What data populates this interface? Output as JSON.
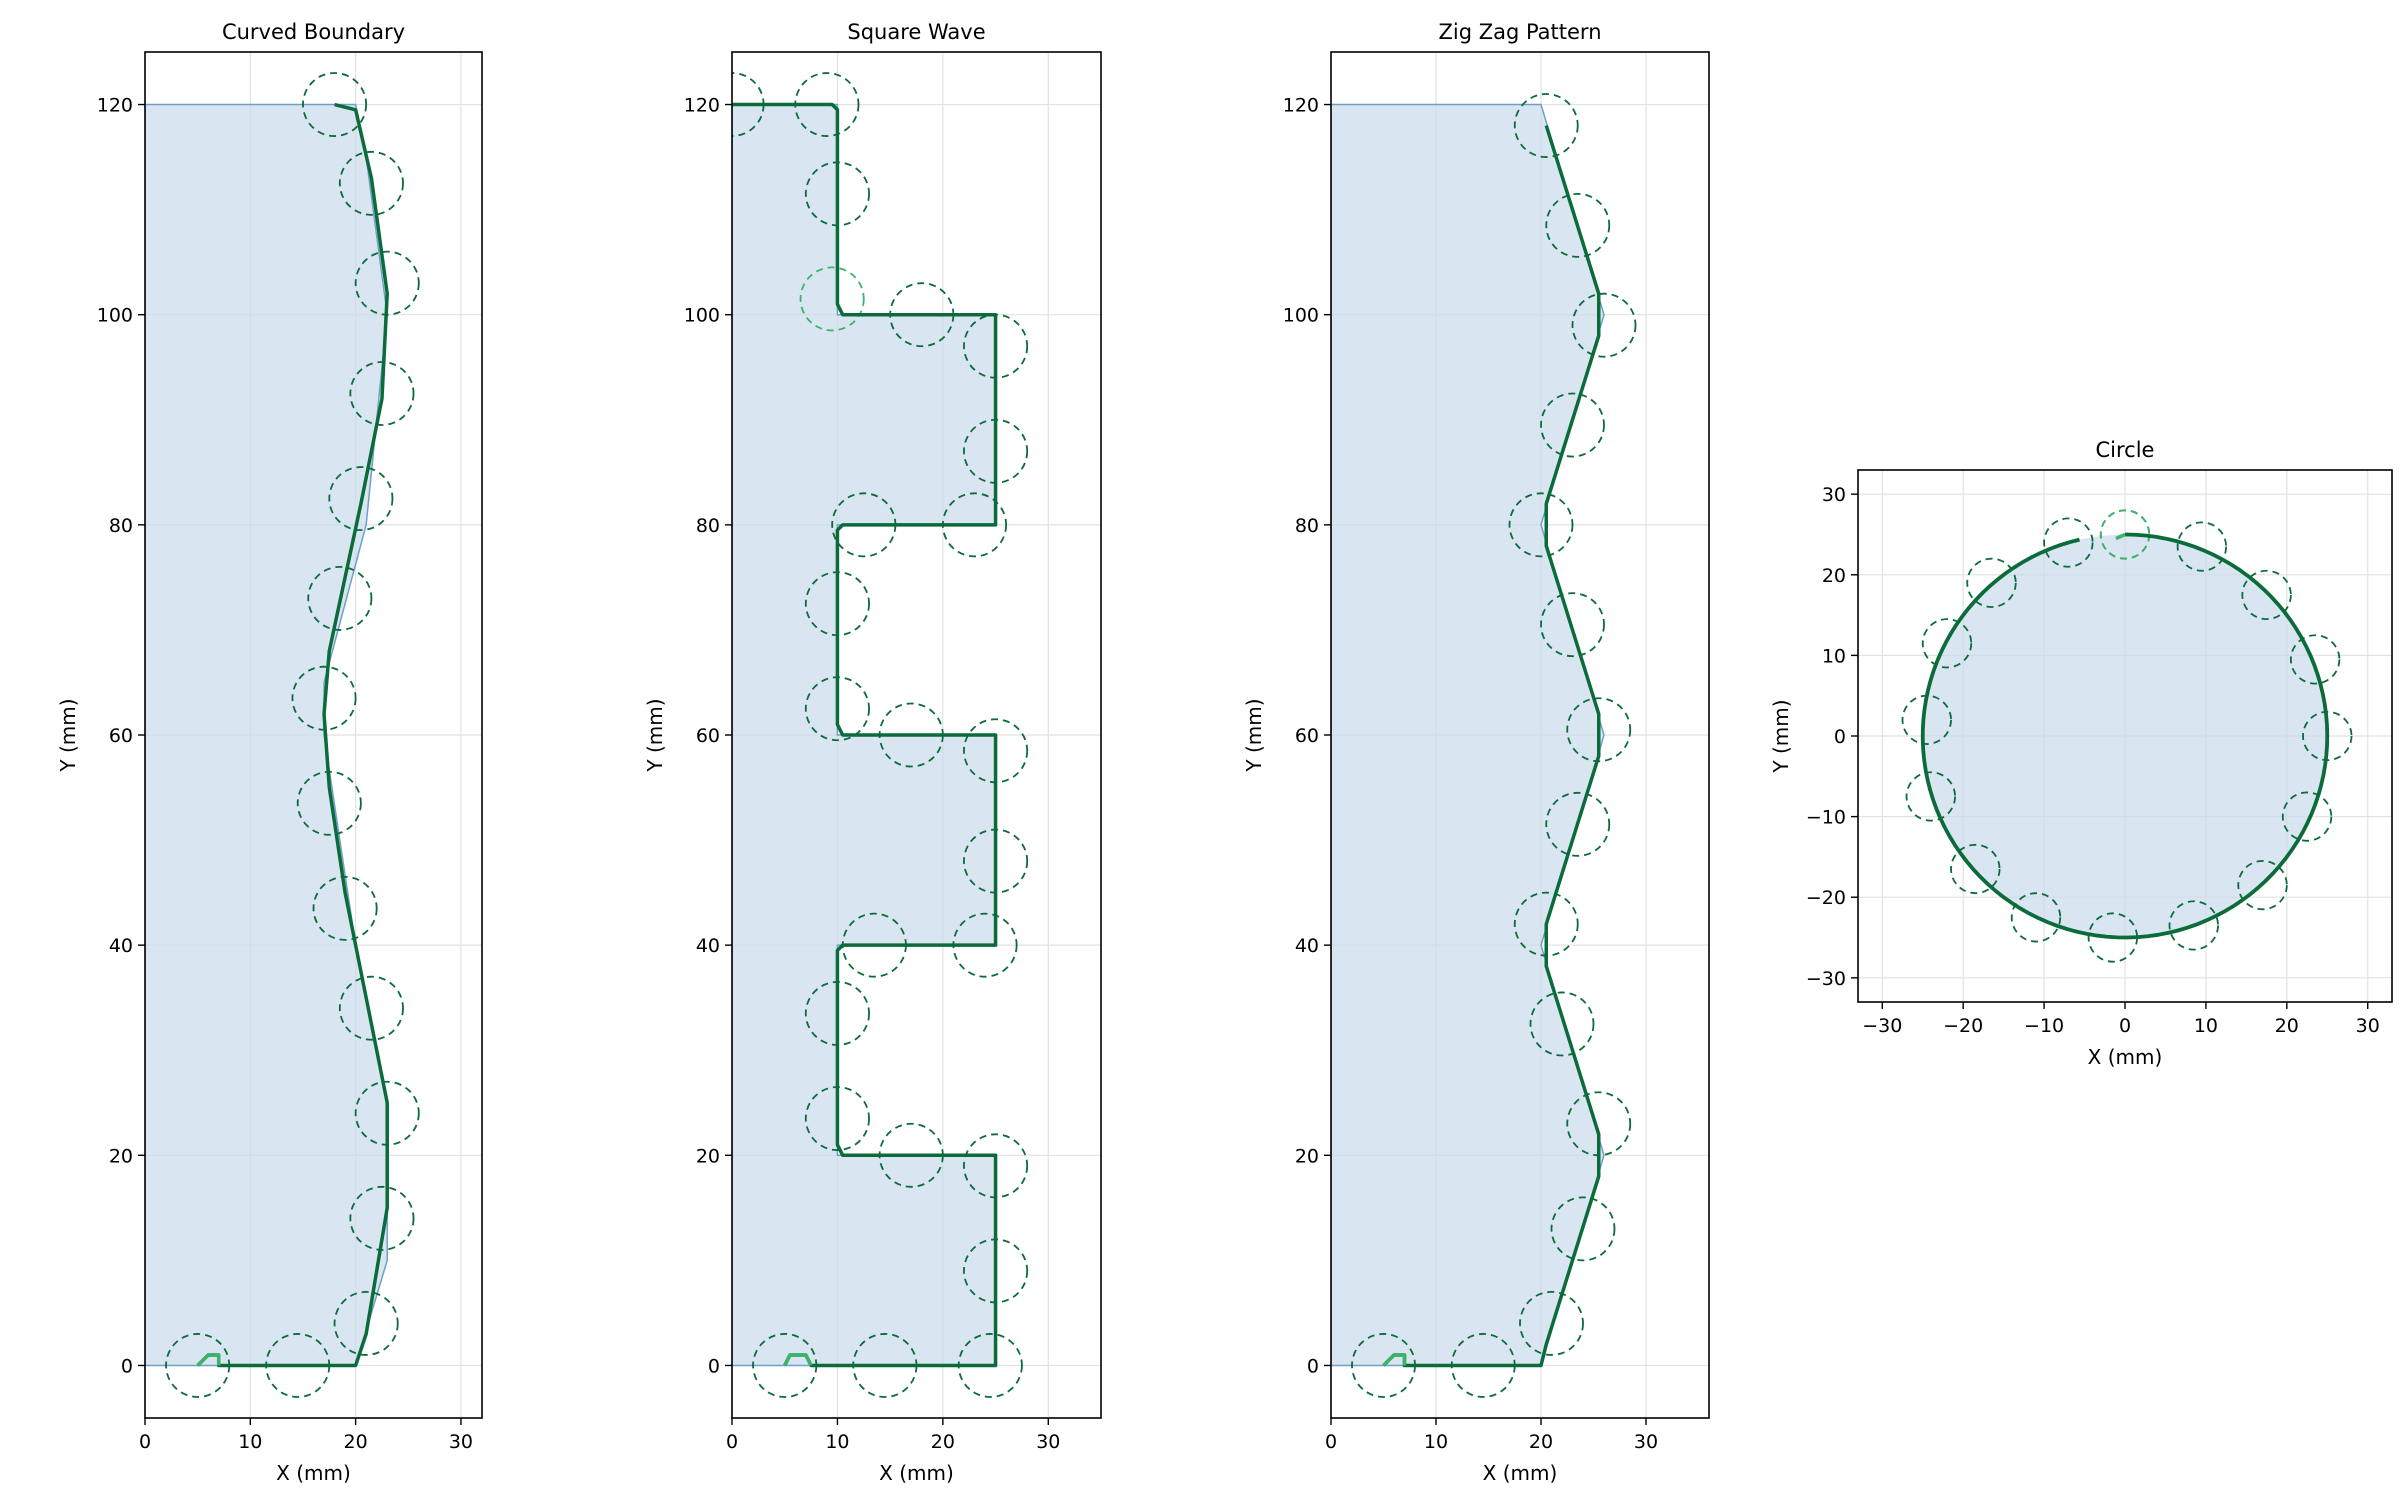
{
  "figure": {
    "background": "#ffffff"
  },
  "colors": {
    "fill": "#c9dceb",
    "fill_edge": "#6fa0c8",
    "path": "#0b6b3a",
    "path_light": "#3db36a",
    "circle": "#0b6b3a",
    "grid": "#e2e2e2",
    "axis": "#000000"
  },
  "chart_data": [
    {
      "type": "line",
      "title": "Curved Boundary",
      "xlabel": "X (mm)",
      "ylabel": "Y (mm)",
      "xlim": [
        0,
        32
      ],
      "ylim": [
        -5,
        125
      ],
      "xticks": [
        0,
        10,
        20,
        30
      ],
      "yticks": [
        0,
        20,
        40,
        60,
        80,
        100,
        120
      ],
      "grid": true,
      "tool_radius": 3,
      "region": [
        [
          0,
          0
        ],
        [
          20,
          0
        ],
        [
          23,
          10
        ],
        [
          23,
          25
        ],
        [
          20,
          40
        ],
        [
          17,
          60
        ],
        [
          17,
          65
        ],
        [
          21,
          80
        ],
        [
          23,
          100
        ],
        [
          21,
          115
        ],
        [
          20,
          120
        ],
        [
          0,
          120
        ]
      ],
      "toolpath": [
        [
          5,
          0
        ],
        [
          6,
          1
        ],
        [
          7,
          1
        ],
        [
          7,
          0
        ],
        [
          20,
          0
        ],
        [
          21,
          3
        ],
        [
          23,
          15
        ],
        [
          23,
          25
        ],
        [
          21,
          35
        ],
        [
          19,
          45
        ],
        [
          17.5,
          55
        ],
        [
          17,
          62
        ],
        [
          17.5,
          68
        ],
        [
          19,
          75
        ],
        [
          20.5,
          82
        ],
        [
          22.5,
          92
        ],
        [
          23,
          102
        ],
        [
          21.5,
          113
        ],
        [
          20,
          119.5
        ],
        [
          18,
          120
        ]
      ],
      "tool_positions": [
        [
          5,
          0
        ],
        [
          14.5,
          0
        ],
        [
          21,
          4
        ],
        [
          22.5,
          14
        ],
        [
          23,
          24
        ],
        [
          21.5,
          34
        ],
        [
          19,
          43.5
        ],
        [
          17.5,
          53.5
        ],
        [
          17,
          63.5
        ],
        [
          18.5,
          73
        ],
        [
          20.5,
          82.5
        ],
        [
          22.5,
          92.5
        ],
        [
          23,
          103
        ],
        [
          21.5,
          112.5
        ],
        [
          18,
          120
        ]
      ],
      "highlight_positions": []
    },
    {
      "type": "line",
      "title": "Square Wave",
      "xlabel": "X (mm)",
      "ylabel": "Y (mm)",
      "xlim": [
        0,
        35
      ],
      "ylim": [
        -5,
        125
      ],
      "xticks": [
        0,
        10,
        20,
        30
      ],
      "yticks": [
        0,
        20,
        40,
        60,
        80,
        100,
        120
      ],
      "grid": true,
      "tool_radius": 3,
      "region": [
        [
          0,
          0
        ],
        [
          25,
          0
        ],
        [
          25,
          20
        ],
        [
          10,
          20
        ],
        [
          10,
          40
        ],
        [
          25,
          40
        ],
        [
          25,
          60
        ],
        [
          10,
          60
        ],
        [
          10,
          80
        ],
        [
          25,
          80
        ],
        [
          25,
          100
        ],
        [
          10,
          100
        ],
        [
          10,
          120
        ],
        [
          0,
          120
        ]
      ],
      "toolpath": [
        [
          5,
          0
        ],
        [
          5.5,
          1
        ],
        [
          7,
          1
        ],
        [
          7.5,
          0
        ],
        [
          25,
          0
        ],
        [
          25,
          20
        ],
        [
          10.5,
          20
        ],
        [
          10,
          21
        ],
        [
          10,
          39.5
        ],
        [
          10.5,
          40
        ],
        [
          25,
          40
        ],
        [
          25,
          60
        ],
        [
          10.5,
          60
        ],
        [
          10,
          61
        ],
        [
          10,
          79.5
        ],
        [
          10.5,
          80
        ],
        [
          25,
          80
        ],
        [
          25,
          100
        ],
        [
          10.5,
          100
        ],
        [
          10,
          101
        ],
        [
          10,
          119.5
        ],
        [
          9.5,
          120
        ],
        [
          0,
          120
        ]
      ],
      "tool_positions": [
        [
          5,
          0
        ],
        [
          14.5,
          0
        ],
        [
          24.5,
          0
        ],
        [
          25,
          9
        ],
        [
          25,
          19
        ],
        [
          17,
          20
        ],
        [
          10,
          23.5
        ],
        [
          10,
          33.5
        ],
        [
          13.5,
          40
        ],
        [
          24,
          40
        ],
        [
          25,
          48
        ],
        [
          25,
          58.5
        ],
        [
          17,
          60
        ],
        [
          10,
          62.5
        ],
        [
          10,
          72.5
        ],
        [
          12.5,
          80
        ],
        [
          23,
          80
        ],
        [
          25,
          87
        ],
        [
          25,
          97
        ],
        [
          18,
          100
        ],
        [
          10,
          111.5
        ],
        [
          9,
          120
        ],
        [
          0,
          120
        ]
      ],
      "highlight_positions": [
        [
          9.5,
          101.5
        ]
      ]
    },
    {
      "type": "line",
      "title": "Zig Zag Pattern",
      "xlabel": "X (mm)",
      "ylabel": "Y (mm)",
      "xlim": [
        0,
        36
      ],
      "ylim": [
        -5,
        125
      ],
      "xticks": [
        0,
        10,
        20,
        30
      ],
      "yticks": [
        0,
        20,
        40,
        60,
        80,
        100,
        120
      ],
      "grid": true,
      "tool_radius": 3,
      "region": [
        [
          0,
          0
        ],
        [
          20,
          0
        ],
        [
          26,
          20
        ],
        [
          20,
          40
        ],
        [
          26,
          60
        ],
        [
          20,
          80
        ],
        [
          26,
          100
        ],
        [
          20,
          120
        ],
        [
          0,
          120
        ]
      ],
      "toolpath": [
        [
          5,
          0
        ],
        [
          6,
          1
        ],
        [
          7,
          1
        ],
        [
          7,
          0
        ],
        [
          20,
          0
        ],
        [
          20.5,
          2
        ],
        [
          25.5,
          18
        ],
        [
          25.5,
          22
        ],
        [
          20.5,
          38
        ],
        [
          20.5,
          42
        ],
        [
          25.5,
          58
        ],
        [
          25.5,
          62
        ],
        [
          20.5,
          78
        ],
        [
          20.5,
          82
        ],
        [
          25.5,
          98
        ],
        [
          25.5,
          102
        ],
        [
          20.5,
          118
        ]
      ],
      "tool_positions": [
        [
          5,
          0
        ],
        [
          14.5,
          0
        ],
        [
          21,
          4
        ],
        [
          24,
          13
        ],
        [
          25.5,
          23
        ],
        [
          22,
          32.5
        ],
        [
          20.5,
          42
        ],
        [
          23.5,
          51.5
        ],
        [
          25.5,
          60.5
        ],
        [
          23,
          70.5
        ],
        [
          20,
          80
        ],
        [
          23,
          89.5
        ],
        [
          26,
          99
        ],
        [
          23.5,
          108.5
        ],
        [
          20.5,
          118
        ]
      ],
      "highlight_positions": []
    },
    {
      "type": "line",
      "title": "Circle",
      "xlabel": "X (mm)",
      "ylabel": "Y (mm)",
      "xlim": [
        -33,
        33
      ],
      "ylim": [
        -33,
        33
      ],
      "xticks": [
        -30,
        -20,
        -10,
        0,
        10,
        20,
        30
      ],
      "yticks": [
        -30,
        -20,
        -10,
        0,
        10,
        20,
        30
      ],
      "grid": true,
      "tool_radius": 3,
      "circle_center": [
        0,
        0
      ],
      "circle_radius": 25,
      "toolpath_start_angle_deg": 90,
      "toolpath_sweep_deg": 347,
      "tool_positions": [
        [
          0,
          25
        ],
        [
          9.5,
          23.5
        ],
        [
          17.5,
          17.5
        ],
        [
          23.5,
          9.5
        ],
        [
          25,
          0
        ],
        [
          22.5,
          -10
        ],
        [
          17,
          -18.5
        ],
        [
          8.5,
          -23.5
        ],
        [
          -1.5,
          -25
        ],
        [
          -11,
          -22.5
        ],
        [
          -18.5,
          -16.5
        ],
        [
          -24,
          -7.5
        ],
        [
          -24.5,
          2
        ],
        [
          -22,
          11.5
        ],
        [
          -16.5,
          19
        ],
        [
          -7,
          24
        ]
      ],
      "highlight_positions": [
        [
          0,
          25
        ]
      ]
    }
  ]
}
